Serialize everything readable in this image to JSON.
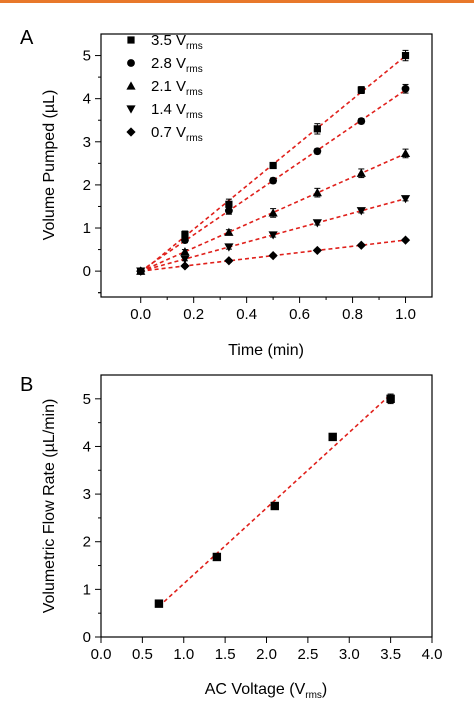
{
  "chart_data": [
    {
      "panel_label": "A",
      "type": "scatter",
      "xlabel": "Time (min)",
      "ylabel": "Volume Pumped (µL)",
      "xlim": [
        -0.15,
        1.1
      ],
      "ylim": [
        -0.6,
        5.5
      ],
      "xticks": [
        "0.0",
        "0.2",
        "0.4",
        "0.6",
        "0.8",
        "1.0"
      ],
      "xtick_values": [
        0,
        0.2,
        0.4,
        0.6,
        0.8,
        1.0
      ],
      "yticks": [
        "0",
        "1",
        "2",
        "3",
        "4",
        "5"
      ],
      "ytick_values": [
        0,
        1,
        2,
        3,
        4,
        5
      ],
      "fit_lines": "red dashed linear fits",
      "fit_color": "#e0201b",
      "marker_color": "#000000",
      "legend_position": "top-left",
      "series": [
        {
          "name_main": "3.5 V",
          "name_sub": "rms",
          "marker": "square",
          "x": [
            0,
            0.167,
            0.333,
            0.5,
            0.667,
            0.833,
            1.0
          ],
          "y": [
            0,
            0.85,
            1.55,
            2.45,
            3.3,
            4.2,
            5.0
          ],
          "err": [
            0.05,
            0.08,
            0.12,
            0.06,
            0.12,
            0.08,
            0.12
          ]
        },
        {
          "name_main": "2.8 V",
          "name_sub": "rms",
          "marker": "circle",
          "x": [
            0,
            0.167,
            0.333,
            0.5,
            0.667,
            0.833,
            1.0
          ],
          "y": [
            0,
            0.72,
            1.4,
            2.1,
            2.78,
            3.48,
            4.23
          ],
          "err": [
            0.04,
            0.06,
            0.08,
            0.06,
            0.06,
            0.06,
            0.1
          ]
        },
        {
          "name_main": "2.1 V",
          "name_sub": "rms",
          "marker": "triangle-up",
          "x": [
            0,
            0.167,
            0.333,
            0.5,
            0.667,
            0.833,
            1.0
          ],
          "y": [
            0,
            0.45,
            0.9,
            1.35,
            1.82,
            2.27,
            2.73
          ],
          "err": [
            0.04,
            0.05,
            0.06,
            0.1,
            0.1,
            0.1,
            0.1
          ]
        },
        {
          "name_main": "1.4 V",
          "name_sub": "rms",
          "marker": "triangle-down",
          "x": [
            0,
            0.167,
            0.333,
            0.5,
            0.667,
            0.833,
            1.0
          ],
          "y": [
            0,
            0.28,
            0.56,
            0.84,
            1.12,
            1.4,
            1.68
          ],
          "err": [
            0.03,
            0.04,
            0.05,
            0.05,
            0.05,
            0.05,
            0.05
          ]
        },
        {
          "name_main": "0.7 V",
          "name_sub": "rms",
          "marker": "diamond",
          "x": [
            0,
            0.167,
            0.333,
            0.5,
            0.667,
            0.833,
            1.0
          ],
          "y": [
            0,
            0.12,
            0.24,
            0.36,
            0.48,
            0.6,
            0.72
          ],
          "err": [
            0.03,
            0.03,
            0.03,
            0.03,
            0.03,
            0.03,
            0.03
          ]
        }
      ]
    },
    {
      "panel_label": "B",
      "type": "scatter",
      "xlabel_main": "AC Voltage (V",
      "xlabel_sub": "rms",
      "xlabel_end": ")",
      "ylabel": "Volumetric Flow Rate (µL/min)",
      "xlim": [
        0,
        4.0
      ],
      "ylim": [
        0,
        5.5
      ],
      "xticks": [
        "0.0",
        "0.5",
        "1.0",
        "1.5",
        "2.0",
        "2.5",
        "3.0",
        "3.5",
        "4.0"
      ],
      "xtick_values": [
        0,
        0.5,
        1.0,
        1.5,
        2.0,
        2.5,
        3.0,
        3.5,
        4.0
      ],
      "yticks": [
        "0",
        "1",
        "2",
        "3",
        "4",
        "5"
      ],
      "ytick_values": [
        0,
        1,
        2,
        3,
        4,
        5
      ],
      "fit_lines": "red dashed linear fit",
      "fit_color": "#e0201b",
      "marker_color": "#000000",
      "series": [
        {
          "marker": "square",
          "x": [
            0.7,
            1.4,
            2.1,
            2.8,
            3.5
          ],
          "y": [
            0.7,
            1.68,
            2.75,
            4.2,
            5.0
          ],
          "err": [
            0.03,
            0.05,
            0.06,
            0.06,
            0.1
          ]
        }
      ]
    }
  ]
}
